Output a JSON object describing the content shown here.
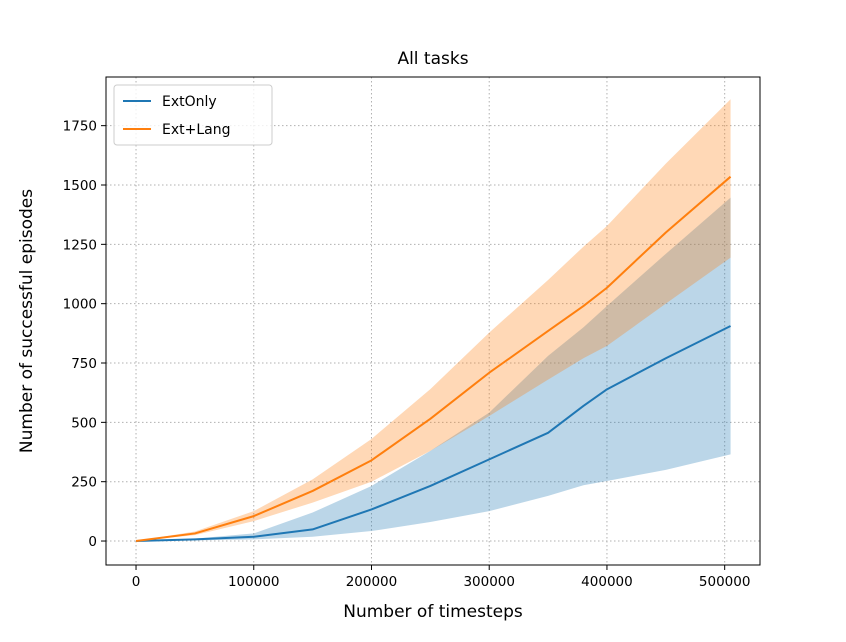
{
  "chart_data": {
    "type": "line",
    "title": "All tasks",
    "xlabel": "Number of timesteps",
    "ylabel": "Number of successful episodes",
    "xlim": [
      -25500,
      530000
    ],
    "ylim": [
      -101,
      1955
    ],
    "grid": true,
    "legend_position": "top-left",
    "xticks": [
      0,
      100000,
      200000,
      300000,
      400000,
      500000
    ],
    "xtick_labels": [
      "0",
      "100000",
      "200000",
      "300000",
      "400000",
      "500000"
    ],
    "yticks": [
      0,
      250,
      500,
      750,
      1000,
      1250,
      1500,
      1750
    ],
    "ytick_labels": [
      "0",
      "250",
      "500",
      "750",
      "1000",
      "1250",
      "1500",
      "1750"
    ],
    "x": [
      0,
      50000,
      100000,
      150000,
      200000,
      250000,
      300000,
      350000,
      380000,
      400000,
      450000,
      505000
    ],
    "series": [
      {
        "name": "ExtOnly",
        "color": "#1f77b4",
        "band_color": "#1f77b4",
        "values": [
          0,
          7,
          18,
          49,
          133,
          232,
          344,
          456,
          569,
          639,
          770,
          906
        ],
        "upper": [
          0,
          10,
          32,
          120,
          232,
          380,
          541,
          780,
          900,
          990,
          1210,
          1447
        ],
        "lower": [
          0,
          3,
          7,
          18,
          42,
          80,
          126,
          190,
          235,
          253,
          300,
          365
        ]
      },
      {
        "name": "Ext+Lang",
        "color": "#ff7f0e",
        "band_color": "#ff7f0e",
        "values": [
          0,
          32,
          105,
          211,
          340,
          515,
          709,
          885,
          990,
          1067,
          1300,
          1535
        ],
        "upper": [
          0,
          40,
          126,
          260,
          430,
          640,
          878,
          1100,
          1240,
          1327,
          1590,
          1861
        ],
        "lower": [
          0,
          25,
          84,
          162,
          250,
          380,
          527,
          680,
          770,
          822,
          1000,
          1194
        ]
      }
    ]
  }
}
